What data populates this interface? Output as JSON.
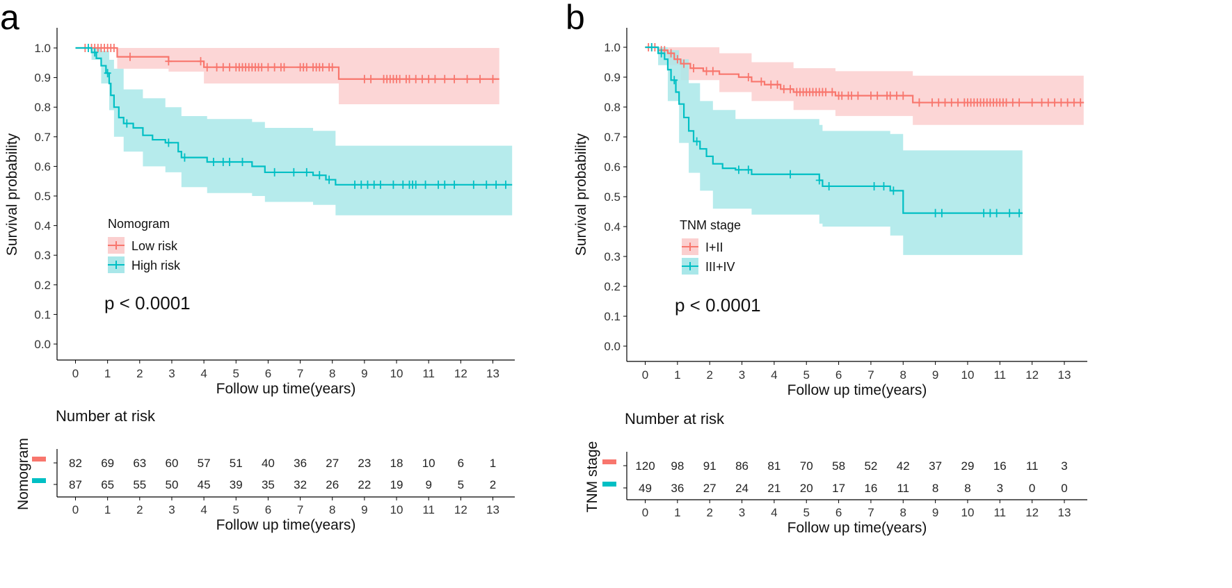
{
  "panels": [
    {
      "label": "a",
      "legend_title": "Nomogram",
      "p_value": "p < 0.0001",
      "risk_title": "Number at risk",
      "risk_ylabel": "Nomogram",
      "chart_data": {
        "type": "line",
        "subtype": "kaplan-meier",
        "xlabel": "Follow up time(years)",
        "ylabel": "Survival probability",
        "xlim": [
          0,
          13.6
        ],
        "ylim": [
          0,
          1.05
        ],
        "xticks": [
          0,
          1,
          2,
          3,
          4,
          5,
          6,
          7,
          8,
          9,
          10,
          11,
          12,
          13
        ],
        "yticks": [
          "0.0",
          "0.1",
          "0.2",
          "0.3",
          "0.4",
          "0.5",
          "0.6",
          "0.7",
          "0.8",
          "0.9",
          "1.0"
        ],
        "series": [
          {
            "name": "Low risk",
            "color": "#F8766D",
            "band": "#FBCFCF",
            "steps": [
              [
                0,
                1.0
              ],
              [
                1.3,
                0.97
              ],
              [
                2.9,
                0.955
              ],
              [
                4.0,
                0.935
              ],
              [
                8.2,
                0.895
              ],
              [
                13.2,
                0.895
              ]
            ],
            "upper": [
              [
                0,
                1.0
              ],
              [
                1.3,
                1.0
              ],
              [
                8.2,
                1.0
              ],
              [
                13.2,
                1.0
              ]
            ],
            "lower": [
              [
                0,
                1.0
              ],
              [
                1.3,
                0.93
              ],
              [
                2.9,
                0.92
              ],
              [
                4.0,
                0.88
              ],
              [
                8.2,
                0.81
              ],
              [
                13.2,
                0.81
              ]
            ],
            "censor": [
              0.3,
              0.5,
              0.6,
              0.7,
              0.8,
              0.9,
              1.0,
              1.1,
              1.2,
              1.7,
              2.9,
              3.9,
              4.1,
              4.4,
              4.6,
              4.8,
              5.0,
              5.1,
              5.2,
              5.3,
              5.4,
              5.5,
              5.6,
              5.7,
              5.8,
              6.0,
              6.2,
              6.4,
              6.5,
              7.0,
              7.1,
              7.2,
              7.4,
              7.5,
              7.6,
              7.7,
              7.9,
              8.0,
              9.0,
              9.2,
              9.6,
              9.7,
              9.8,
              9.9,
              10.0,
              10.1,
              10.3,
              10.4,
              10.6,
              10.8,
              11.0,
              11.2,
              11.5,
              11.8,
              12.2,
              12.6,
              13.0
            ],
            "risk": [
              82,
              69,
              63,
              60,
              57,
              51,
              40,
              36,
              27,
              23,
              18,
              10,
              6,
              1
            ]
          },
          {
            "name": "High risk",
            "color": "#00BFC4",
            "band": "#A9E7E9",
            "steps": [
              [
                0,
                1.0
              ],
              [
                0.5,
                0.985
              ],
              [
                0.65,
                0.965
              ],
              [
                0.8,
                0.94
              ],
              [
                0.95,
                0.915
              ],
              [
                1.05,
                0.88
              ],
              [
                1.1,
                0.84
              ],
              [
                1.2,
                0.8
              ],
              [
                1.35,
                0.765
              ],
              [
                1.5,
                0.745
              ],
              [
                1.8,
                0.73
              ],
              [
                2.1,
                0.705
              ],
              [
                2.4,
                0.69
              ],
              [
                2.8,
                0.68
              ],
              [
                3.2,
                0.65
              ],
              [
                3.3,
                0.63
              ],
              [
                4.1,
                0.615
              ],
              [
                5.5,
                0.6
              ],
              [
                5.9,
                0.58
              ],
              [
                7.4,
                0.57
              ],
              [
                7.8,
                0.555
              ],
              [
                8.1,
                0.538
              ],
              [
                13.6,
                0.538
              ]
            ],
            "upper": [
              [
                0,
                1.0
              ],
              [
                0.5,
                1.0
              ],
              [
                0.8,
                0.99
              ],
              [
                1.05,
                0.96
              ],
              [
                1.2,
                0.93
              ],
              [
                1.5,
                0.86
              ],
              [
                2.1,
                0.83
              ],
              [
                2.8,
                0.8
              ],
              [
                3.3,
                0.77
              ],
              [
                4.1,
                0.76
              ],
              [
                5.5,
                0.75
              ],
              [
                5.9,
                0.73
              ],
              [
                7.4,
                0.72
              ],
              [
                8.1,
                0.67
              ],
              [
                13.6,
                0.67
              ]
            ],
            "lower": [
              [
                0,
                1.0
              ],
              [
                0.5,
                0.96
              ],
              [
                0.8,
                0.88
              ],
              [
                1.05,
                0.79
              ],
              [
                1.2,
                0.7
              ],
              [
                1.5,
                0.65
              ],
              [
                2.1,
                0.6
              ],
              [
                2.8,
                0.58
              ],
              [
                3.3,
                0.53
              ],
              [
                4.1,
                0.51
              ],
              [
                5.5,
                0.5
              ],
              [
                5.9,
                0.48
              ],
              [
                7.4,
                0.47
              ],
              [
                8.1,
                0.435
              ],
              [
                13.6,
                0.435
              ]
            ],
            "censor": [
              0.4,
              0.6,
              1.0,
              1.6,
              2.9,
              3.4,
              4.3,
              4.6,
              4.8,
              5.2,
              6.2,
              6.8,
              7.2,
              7.6,
              7.9,
              8.7,
              8.9,
              9.1,
              9.3,
              9.5,
              9.9,
              10.2,
              10.4,
              10.5,
              10.6,
              10.9,
              11.3,
              11.5,
              11.8,
              12.4,
              12.8,
              13.1,
              13.4
            ],
            "risk": [
              87,
              65,
              55,
              50,
              45,
              39,
              35,
              32,
              26,
              22,
              19,
              9,
              5,
              2
            ]
          }
        ]
      }
    },
    {
      "label": "b",
      "legend_title": "TNM stage",
      "p_value": "p < 0.0001",
      "risk_title": "Number at risk",
      "risk_ylabel": "TNM stage",
      "chart_data": {
        "type": "line",
        "subtype": "kaplan-meier",
        "xlabel": "Follow up time(years)",
        "ylabel": "Survival probability",
        "xlim": [
          0,
          13.6
        ],
        "ylim": [
          0,
          1.05
        ],
        "xticks": [
          0,
          1,
          2,
          3,
          4,
          5,
          6,
          7,
          8,
          9,
          10,
          11,
          12,
          13
        ],
        "yticks": [
          "0.0",
          "0.1",
          "0.2",
          "0.3",
          "0.4",
          "0.5",
          "0.6",
          "0.7",
          "0.8",
          "0.9",
          "1.0"
        ],
        "series": [
          {
            "name": "I+II",
            "color": "#F8766D",
            "band": "#FBCFCF",
            "steps": [
              [
                0,
                1.0
              ],
              [
                0.4,
                0.99
              ],
              [
                0.7,
                0.98
              ],
              [
                0.9,
                0.96
              ],
              [
                1.1,
                0.945
              ],
              [
                1.4,
                0.93
              ],
              [
                1.8,
                0.92
              ],
              [
                2.3,
                0.91
              ],
              [
                2.9,
                0.9
              ],
              [
                3.3,
                0.885
              ],
              [
                3.7,
                0.875
              ],
              [
                4.2,
                0.86
              ],
              [
                4.6,
                0.85
              ],
              [
                5.9,
                0.838
              ],
              [
                8.3,
                0.815
              ],
              [
                13.6,
                0.815
              ]
            ],
            "upper": [
              [
                0,
                1.0
              ],
              [
                1.1,
                1.0
              ],
              [
                2.3,
                0.98
              ],
              [
                3.3,
                0.95
              ],
              [
                4.6,
                0.93
              ],
              [
                5.9,
                0.92
              ],
              [
                8.3,
                0.905
              ],
              [
                13.6,
                0.905
              ]
            ],
            "lower": [
              [
                0,
                1.0
              ],
              [
                0.7,
                0.94
              ],
              [
                1.1,
                0.89
              ],
              [
                2.3,
                0.85
              ],
              [
                3.3,
                0.82
              ],
              [
                4.6,
                0.79
              ],
              [
                5.9,
                0.77
              ],
              [
                8.3,
                0.74
              ],
              [
                13.6,
                0.74
              ]
            ],
            "censor": [
              0.1,
              0.2,
              0.3,
              0.5,
              0.6,
              0.8,
              1.0,
              1.2,
              1.5,
              1.9,
              2.1,
              3.2,
              3.6,
              3.9,
              4.1,
              4.3,
              4.5,
              4.7,
              4.8,
              4.9,
              5.0,
              5.1,
              5.2,
              5.3,
              5.4,
              5.5,
              5.6,
              5.8,
              6.0,
              6.1,
              6.3,
              6.4,
              6.6,
              7.0,
              7.2,
              7.5,
              7.6,
              7.8,
              8.0,
              8.5,
              8.9,
              9.1,
              9.3,
              9.5,
              9.7,
              9.9,
              10.0,
              10.1,
              10.2,
              10.3,
              10.4,
              10.5,
              10.6,
              10.7,
              10.8,
              10.9,
              11.0,
              11.1,
              11.2,
              11.4,
              11.6,
              12.0,
              12.3,
              12.5,
              12.7,
              12.9,
              13.1,
              13.3,
              13.5
            ],
            "risk": [
              120,
              98,
              91,
              86,
              81,
              70,
              58,
              52,
              42,
              37,
              29,
              16,
              11,
              3
            ]
          },
          {
            "name": "III+IV",
            "color": "#00BFC4",
            "band": "#A9E7E9",
            "steps": [
              [
                0,
                1.0
              ],
              [
                0.4,
                0.98
              ],
              [
                0.6,
                0.96
              ],
              [
                0.7,
                0.925
              ],
              [
                0.8,
                0.89
              ],
              [
                0.95,
                0.85
              ],
              [
                1.05,
                0.81
              ],
              [
                1.2,
                0.765
              ],
              [
                1.35,
                0.72
              ],
              [
                1.5,
                0.685
              ],
              [
                1.7,
                0.66
              ],
              [
                1.9,
                0.635
              ],
              [
                2.1,
                0.61
              ],
              [
                2.4,
                0.595
              ],
              [
                2.8,
                0.59
              ],
              [
                3.3,
                0.575
              ],
              [
                5.4,
                0.555
              ],
              [
                5.5,
                0.535
              ],
              [
                7.6,
                0.52
              ],
              [
                8.0,
                0.445
              ],
              [
                11.7,
                0.445
              ]
            ],
            "upper": [
              [
                0,
                1.0
              ],
              [
                0.4,
                1.0
              ],
              [
                0.7,
                0.99
              ],
              [
                1.05,
                0.96
              ],
              [
                1.35,
                0.88
              ],
              [
                1.7,
                0.82
              ],
              [
                2.1,
                0.79
              ],
              [
                2.8,
                0.76
              ],
              [
                5.4,
                0.74
              ],
              [
                5.5,
                0.72
              ],
              [
                7.6,
                0.71
              ],
              [
                8.0,
                0.655
              ],
              [
                11.7,
                0.655
              ]
            ],
            "lower": [
              [
                0,
                1.0
              ],
              [
                0.4,
                0.94
              ],
              [
                0.7,
                0.82
              ],
              [
                1.05,
                0.68
              ],
              [
                1.35,
                0.58
              ],
              [
                1.7,
                0.52
              ],
              [
                2.1,
                0.46
              ],
              [
                3.3,
                0.44
              ],
              [
                5.4,
                0.41
              ],
              [
                5.5,
                0.4
              ],
              [
                7.6,
                0.37
              ],
              [
                8.0,
                0.305
              ],
              [
                11.7,
                0.305
              ]
            ],
            "censor": [
              0.2,
              0.5,
              0.9,
              1.6,
              2.9,
              3.2,
              4.5,
              5.4,
              5.7,
              7.1,
              7.4,
              7.7,
              9.0,
              9.2,
              10.5,
              10.7,
              10.9,
              11.3,
              11.6
            ],
            "risk": [
              49,
              36,
              27,
              24,
              21,
              20,
              17,
              16,
              11,
              8,
              8,
              3,
              0,
              0
            ]
          }
        ]
      }
    }
  ]
}
